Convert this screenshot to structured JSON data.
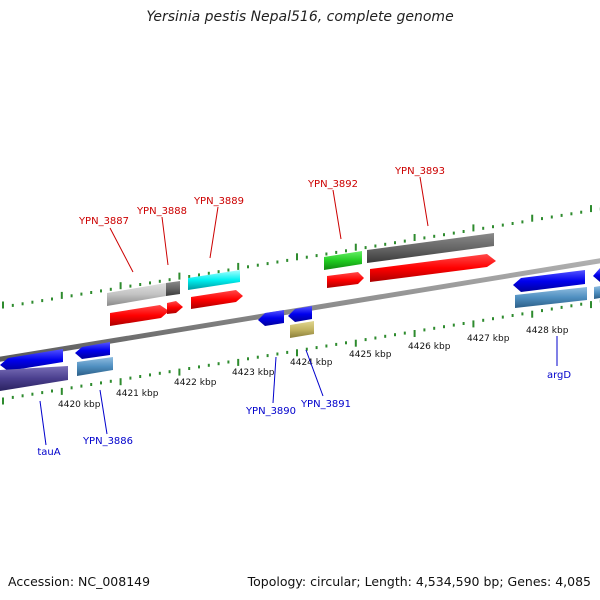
{
  "title": "Yersinia pestis Nepal516, complete genome",
  "footer": {
    "accession": "Accession: NC_008149",
    "topology": "Topology: circular; Length: 4,534,590 bp; Genes: 4,085"
  },
  "ticks": [
    "4420 kbp",
    "4421 kbp",
    "4422 kbp",
    "4423 kbp",
    "4424 kbp",
    "4425 kbp",
    "4426 kbp",
    "4427 kbp",
    "4428 kbp"
  ],
  "labels_forward": [
    "YPN_3887",
    "YPN_3888",
    "YPN_3889",
    "YPN_3892",
    "YPN_3893"
  ],
  "labels_reverse": [
    "tauA",
    "YPN_3886",
    "YPN_3890",
    "YPN_3891",
    "argD"
  ],
  "colors": {
    "forward_label": "#cc0000",
    "reverse_label": "#0000cc",
    "cds": "#ff0000",
    "reverse_cds": "#0000ff",
    "backbone": "#888888",
    "gc_ticks": "#2e8b2e"
  }
}
